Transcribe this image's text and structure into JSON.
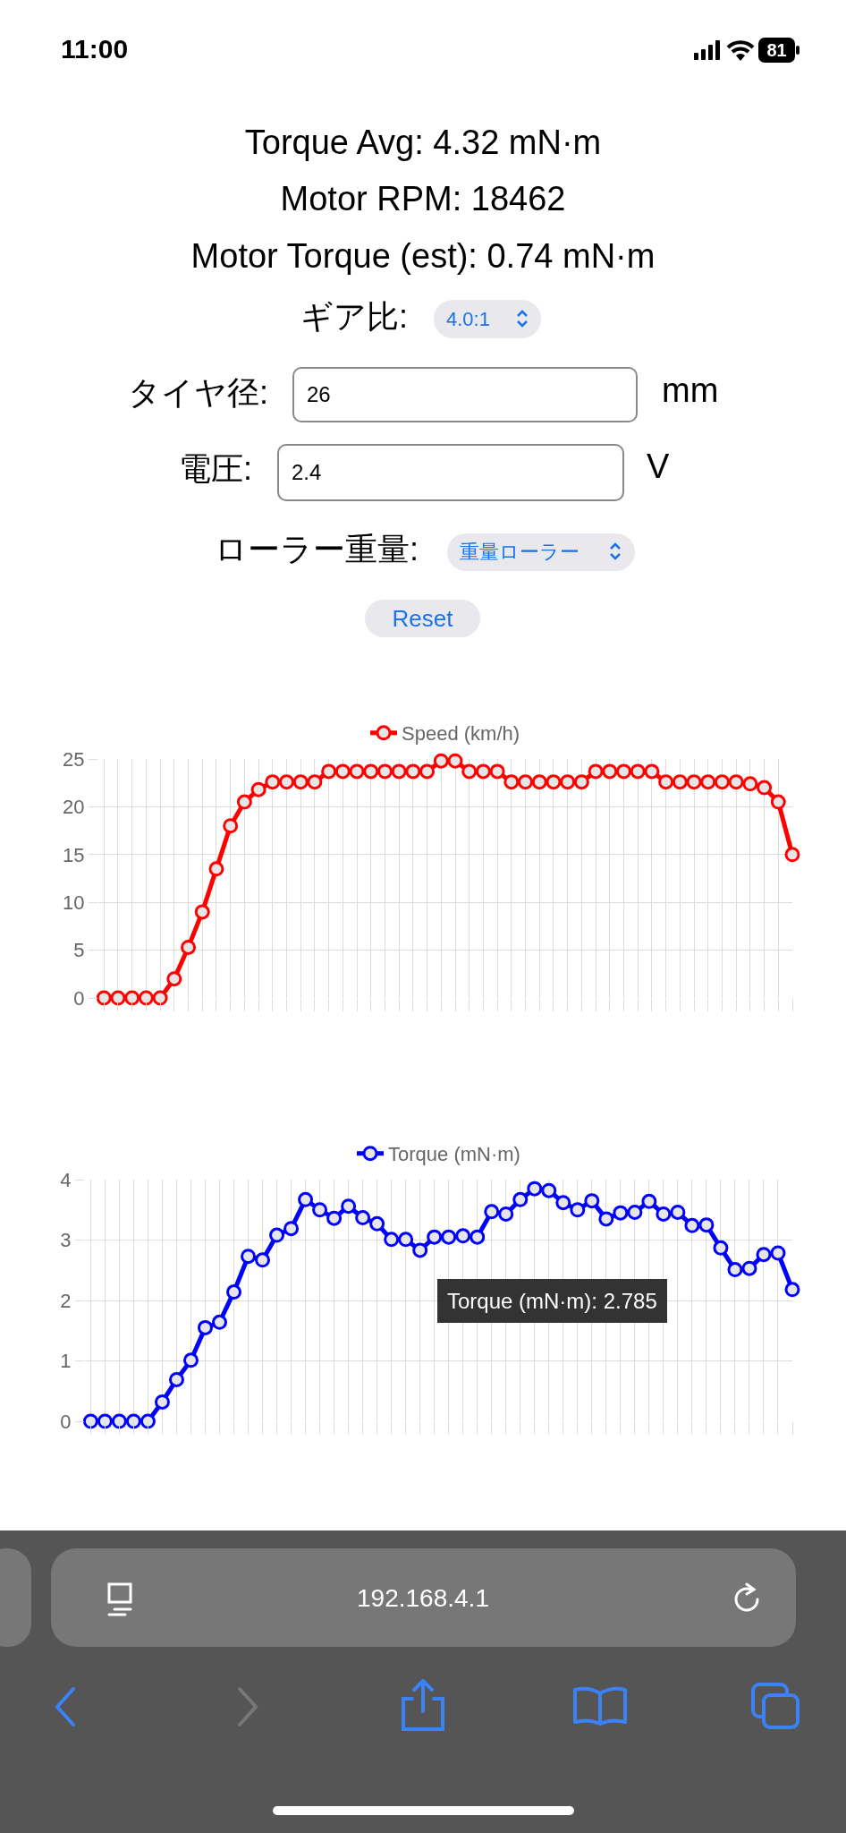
{
  "chart_data": [
    {
      "type": "other",
      "annotations": [
        "11:00",
        "81",
        "Torque Avg: 4.32 mN·m",
        "Motor RPM: 18462",
        "Motor Torque (est): 0.74 mN·m",
        "ギア比:",
        "4.0:1",
        "タイヤ径:",
        "26",
        "mm",
        "電圧:",
        "2.4",
        "V",
        "ローラー重量:",
        "重量ローラー",
        "Reset",
        "192.168.4.1"
      ]
    },
    {
      "type": "line",
      "categories": [
        null,
        null,
        null,
        null,
        null,
        null,
        null,
        null,
        null,
        null,
        null,
        null,
        null,
        null,
        null,
        null,
        null,
        null,
        null,
        null,
        null,
        null,
        null,
        null,
        null,
        null,
        null,
        null,
        null,
        null,
        null,
        null,
        null,
        null,
        null,
        null,
        null,
        null,
        null,
        null,
        null,
        null,
        null,
        null,
        null,
        null,
        null,
        null,
        null,
        null
      ],
      "series": [
        {
          "name": "Speed (km/h)",
          "color": "#ff0000",
          "values": [
            0,
            0,
            0,
            0,
            0,
            2,
            5.3,
            9,
            13.5,
            18,
            20.5,
            21.8,
            22.6,
            22.6,
            22.6,
            22.6,
            23.7,
            23.7,
            23.7,
            23.7,
            23.7,
            23.7,
            23.7,
            23.7,
            24.8,
            24.8,
            23.7,
            23.7,
            23.7,
            22.6,
            22.6,
            22.6,
            22.6,
            22.6,
            22.6,
            23.7,
            23.7,
            23.7,
            23.7,
            23.7,
            22.6,
            22.6,
            22.6,
            22.6,
            22.6,
            22.6,
            22.4,
            22,
            20.5,
            15
          ]
        }
      ],
      "ylim": [
        0,
        25
      ],
      "yticks": [
        0,
        5,
        10,
        15,
        20,
        25
      ],
      "grid": true,
      "legend": "top",
      "marker": "circle",
      "line_style": "solid"
    },
    {
      "type": "line",
      "categories": [
        null,
        null,
        null,
        null,
        null,
        null,
        null,
        null,
        null,
        null,
        null,
        null,
        null,
        null,
        null,
        null,
        null,
        null,
        null,
        null,
        null,
        null,
        null,
        null,
        null,
        null,
        null,
        null,
        null,
        null,
        null,
        null,
        null,
        null,
        null,
        null,
        null,
        null,
        null,
        null,
        null,
        null,
        null,
        null,
        null,
        null,
        null,
        null,
        null,
        null
      ],
      "series": [
        {
          "name": "Torque (mN·m)",
          "color": "#0000ff",
          "values": [
            0,
            0,
            0,
            0,
            0,
            0.32,
            0.69,
            1.01,
            1.55,
            1.64,
            2.14,
            2.73,
            2.67,
            3.08,
            3.19,
            3.67,
            3.5,
            3.36,
            3.56,
            3.37,
            3.27,
            3.01,
            3.01,
            2.83,
            3.05,
            3.05,
            3.07,
            3.05,
            3.47,
            3.43,
            3.67,
            3.85,
            3.82,
            3.62,
            3.5,
            3.65,
            3.35,
            3.45,
            3.46,
            3.64,
            3.43,
            3.46,
            3.24,
            3.25,
            2.87,
            2.51,
            2.53,
            2.76,
            2.785,
            2.18
          ]
        }
      ],
      "ylim": [
        0,
        4
      ],
      "yticks": [
        0,
        1,
        2,
        3,
        4
      ],
      "grid": true,
      "legend": "top",
      "marker": "circle",
      "line_style": "solid",
      "annotations": [
        "Torque (mN·m): 2.785"
      ]
    }
  ]
}
